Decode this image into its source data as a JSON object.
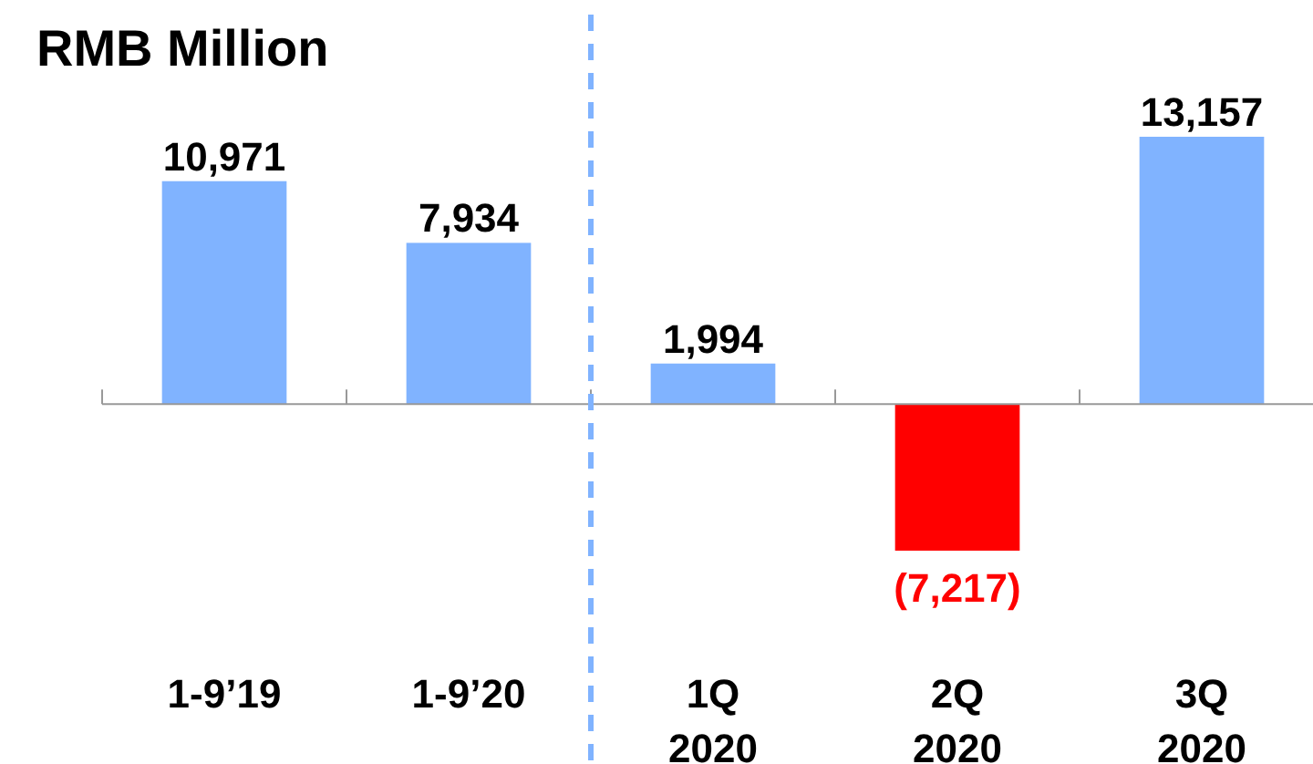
{
  "chart_data": {
    "type": "bar",
    "title": "RMB Million",
    "categories": [
      "1-9’19",
      "1-9’20",
      "1Q\n2020",
      "2Q\n2020",
      "3Q\n2020"
    ],
    "values": [
      10971,
      7934,
      1994,
      -7217,
      13157
    ],
    "colors": [
      "#80b3ff",
      "#80b3ff",
      "#80b3ff",
      "#ff0000",
      "#80b3ff"
    ],
    "value_labels": [
      "10,971",
      "7,934",
      "1,994",
      "(7,217)",
      "13,157"
    ]
  }
}
